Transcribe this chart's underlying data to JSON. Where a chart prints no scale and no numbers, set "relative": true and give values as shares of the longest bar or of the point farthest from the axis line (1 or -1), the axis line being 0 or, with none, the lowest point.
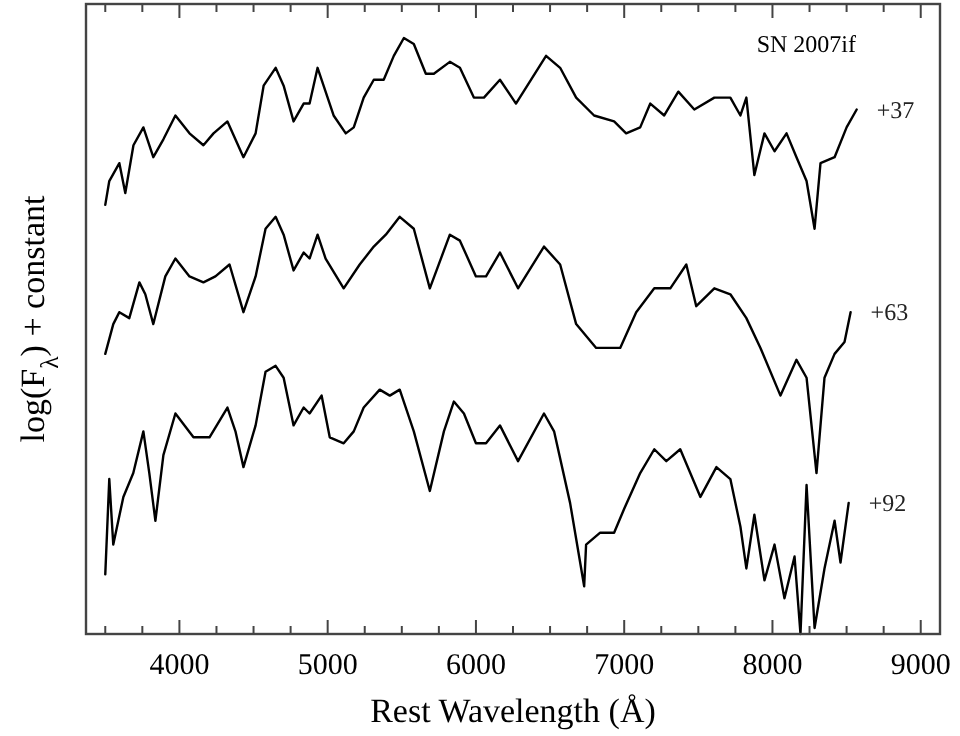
{
  "chart_data": {
    "type": "line",
    "relative": true,
    "xlabel": "Rest Wavelength (Å)",
    "ylabel": "log(F$_{λ}$) + constant",
    "annotations": [
      "SN 2007if"
    ],
    "xlim": [
      3370,
      9130
    ],
    "xticks": [
      {
        "value": 3500,
        "label": null
      },
      {
        "value": 3750,
        "label": null
      },
      4000,
      {
        "value": 4250,
        "label": null
      },
      {
        "value": 4500,
        "label": null
      },
      {
        "value": 4750,
        "label": null
      },
      5000,
      {
        "value": 5250,
        "label": null
      },
      {
        "value": 5500,
        "label": null
      },
      {
        "value": 5750,
        "label": null
      },
      6000,
      {
        "value": 6250,
        "label": null
      },
      {
        "value": 6500,
        "label": null
      },
      {
        "value": 6750,
        "label": null
      },
      7000,
      {
        "value": 7250,
        "label": null
      },
      {
        "value": 7500,
        "label": null
      },
      {
        "value": 7750,
        "label": null
      },
      8000,
      {
        "value": 8250,
        "label": null
      },
      {
        "value": 8500,
        "label": null
      },
      {
        "value": 8750,
        "label": null
      },
      9000
    ],
    "line_style": "solid",
    "series": [
      {
        "name": "+37",
        "color": "#000000",
        "x": [
          3500,
          3527,
          3595,
          3635,
          3690,
          3757,
          3824,
          3892,
          3973,
          4068,
          4162,
          4230,
          4324,
          4432,
          4514,
          4568,
          4649,
          4703,
          4770,
          4838,
          4878,
          4932,
          4986,
          5040,
          5122,
          5176,
          5243,
          5311,
          5378,
          5446,
          5514,
          5581,
          5662,
          5716,
          5824,
          5892,
          5986,
          6054,
          6162,
          6270,
          6473,
          6568,
          6676,
          6797,
          6932,
          7013,
          7108,
          7176,
          7270,
          7365,
          7473,
          7608,
          7716,
          7784,
          7824,
          7878,
          7946,
          8014,
          8095,
          8162,
          8230,
          8284,
          8324,
          8419,
          8500,
          8568
        ],
        "values": [
          0.72,
          0.76,
          0.79,
          0.74,
          0.82,
          0.85,
          0.8,
          0.83,
          0.87,
          0.84,
          0.82,
          0.84,
          0.86,
          0.8,
          0.84,
          0.92,
          0.95,
          0.92,
          0.86,
          0.89,
          0.89,
          0.95,
          0.91,
          0.87,
          0.84,
          0.85,
          0.9,
          0.93,
          0.93,
          0.97,
          1.0,
          0.99,
          0.94,
          0.94,
          0.96,
          0.95,
          0.9,
          0.9,
          0.93,
          0.89,
          0.97,
          0.95,
          0.9,
          0.87,
          0.86,
          0.84,
          0.85,
          0.89,
          0.87,
          0.91,
          0.88,
          0.9,
          0.9,
          0.87,
          0.9,
          0.77,
          0.84,
          0.81,
          0.84,
          0.8,
          0.76,
          0.68,
          0.79,
          0.8,
          0.85,
          0.88
        ]
      },
      {
        "name": "+63",
        "color": "#000000",
        "x": [
          3500,
          3554,
          3595,
          3662,
          3730,
          3770,
          3824,
          3905,
          3973,
          4068,
          4162,
          4243,
          4338,
          4432,
          4514,
          4581,
          4649,
          4703,
          4770,
          4838,
          4878,
          4932,
          4986,
          5108,
          5216,
          5311,
          5392,
          5486,
          5581,
          5689,
          5824,
          5892,
          6000,
          6068,
          6162,
          6284,
          6459,
          6568,
          6676,
          6811,
          6973,
          7081,
          7203,
          7311,
          7419,
          7486,
          7608,
          7716,
          7824,
          7919,
          8054,
          8162,
          8230,
          8297,
          8351,
          8419,
          8486,
          8527
        ],
        "values": [
          0.47,
          0.52,
          0.54,
          0.53,
          0.59,
          0.57,
          0.52,
          0.6,
          0.63,
          0.6,
          0.59,
          0.6,
          0.62,
          0.54,
          0.6,
          0.68,
          0.7,
          0.67,
          0.61,
          0.64,
          0.63,
          0.67,
          0.63,
          0.58,
          0.62,
          0.65,
          0.67,
          0.7,
          0.68,
          0.58,
          0.67,
          0.66,
          0.6,
          0.6,
          0.64,
          0.58,
          0.65,
          0.62,
          0.52,
          0.48,
          0.48,
          0.54,
          0.58,
          0.58,
          0.62,
          0.55,
          0.58,
          0.57,
          0.53,
          0.48,
          0.4,
          0.46,
          0.43,
          0.27,
          0.43,
          0.47,
          0.49,
          0.54
        ]
      },
      {
        "name": "+92",
        "color": "#000000",
        "x": [
          3500,
          3527,
          3554,
          3622,
          3689,
          3757,
          3797,
          3838,
          3892,
          3973,
          4095,
          4203,
          4324,
          4378,
          4432,
          4514,
          4581,
          4649,
          4703,
          4770,
          4838,
          4878,
          4959,
          5014,
          5108,
          5176,
          5243,
          5351,
          5419,
          5486,
          5581,
          5689,
          5784,
          5851,
          5919,
          6000,
          6068,
          6162,
          6284,
          6459,
          6527,
          6635,
          6730,
          6743,
          6838,
          6932,
          7000,
          7108,
          7203,
          7284,
          7378,
          7514,
          7622,
          7716,
          7784,
          7824,
          7878,
          7946,
          8014,
          8081,
          8149,
          8189,
          8230,
          8284,
          8351,
          8419,
          8459,
          8514
        ],
        "values": [
          0.1,
          0.26,
          0.15,
          0.23,
          0.27,
          0.34,
          0.27,
          0.19,
          0.3,
          0.37,
          0.33,
          0.33,
          0.38,
          0.34,
          0.28,
          0.35,
          0.44,
          0.45,
          0.43,
          0.35,
          0.38,
          0.37,
          0.4,
          0.33,
          0.32,
          0.34,
          0.38,
          0.41,
          0.4,
          0.41,
          0.34,
          0.24,
          0.34,
          0.39,
          0.37,
          0.32,
          0.32,
          0.35,
          0.29,
          0.37,
          0.34,
          0.22,
          0.08,
          0.15,
          0.17,
          0.17,
          0.21,
          0.27,
          0.31,
          0.29,
          0.31,
          0.23,
          0.28,
          0.26,
          0.18,
          0.11,
          0.2,
          0.09,
          0.15,
          0.06,
          0.13,
          0.0,
          0.25,
          0.01,
          0.11,
          0.19,
          0.12,
          0.22
        ]
      }
    ]
  }
}
